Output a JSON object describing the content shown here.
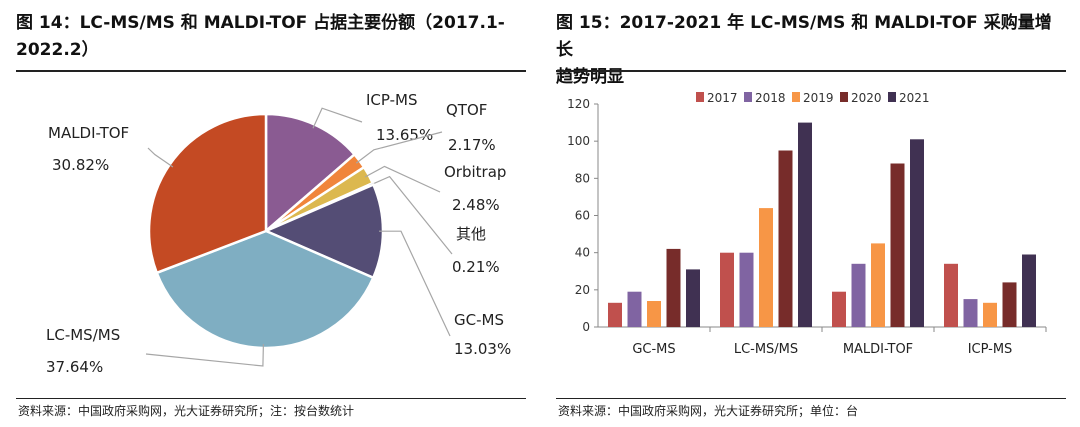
{
  "left": {
    "title_line1": "图 14：LC-MS/MS 和 MALDI-TOF 占据主要份额（2017.1-",
    "title_line2": "2022.2）",
    "source": "资料来源：中国政府采购网，光大证券研究所；注：按台数统计"
  },
  "right": {
    "title_line1": "图 15：2017-2021 年 LC-MS/MS 和 MALDI-TOF 采购量增长",
    "title_line2": "趋势明显",
    "source": "资料来源：中国政府采购网，光大证券研究所；单位：台"
  },
  "chart_data": [
    {
      "type": "pie",
      "title": "LC-MS/MS 和 MALDI-TOF 占据主要份额（2017.1-2022.2）",
      "slices": [
        {
          "label": "ICP-MS",
          "value": 13.65,
          "value_label": "13.65%",
          "color": "#8a5b92"
        },
        {
          "label": "QTOF",
          "value": 2.17,
          "value_label": "2.17%",
          "color": "#f0853b"
        },
        {
          "label": "Orbitrap",
          "value": 2.48,
          "value_label": "2.48%",
          "color": "#dcb84f"
        },
        {
          "label": "其他",
          "value": 0.21,
          "value_label": "0.21%",
          "color": "#c9c9c9"
        },
        {
          "label": "GC-MS",
          "value": 13.03,
          "value_label": "13.03%",
          "color": "#544d75"
        },
        {
          "label": "LC-MS/MS",
          "value": 37.64,
          "value_label": "37.64%",
          "color": "#7faec2"
        },
        {
          "label": "MALDI-TOF",
          "value": 30.82,
          "value_label": "30.82%",
          "color": "#c44a23"
        }
      ]
    },
    {
      "type": "bar",
      "title": "2017-2021 年 LC-MS/MS 和 MALDI-TOF 采购量增长趋势明显",
      "categories": [
        "GC-MS",
        "LC-MS/MS",
        "MALDI-TOF",
        "ICP-MS"
      ],
      "series": [
        {
          "name": "2017",
          "color": "#c0504d",
          "values": [
            13,
            40,
            19,
            34
          ]
        },
        {
          "name": "2018",
          "color": "#8064a2",
          "values": [
            19,
            40,
            34,
            15
          ]
        },
        {
          "name": "2019",
          "color": "#f79646",
          "values": [
            14,
            64,
            45,
            13
          ]
        },
        {
          "name": "2020",
          "color": "#772c2a",
          "values": [
            42,
            95,
            88,
            24
          ]
        },
        {
          "name": "2021",
          "color": "#403152",
          "values": [
            31,
            110,
            101,
            39
          ]
        }
      ],
      "ylim": [
        0,
        120
      ],
      "yticks": [
        0,
        20,
        40,
        60,
        80,
        100,
        120
      ],
      "legend": "top",
      "xlabel": "",
      "ylabel": ""
    }
  ]
}
